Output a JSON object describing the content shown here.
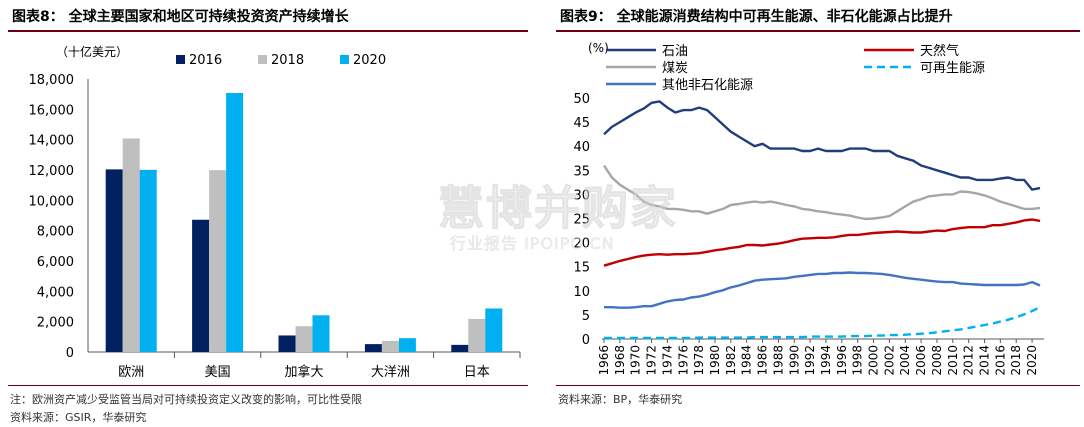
{
  "left": {
    "title": "图表8：  全球主要国家和地区可持续投资资产持续增长",
    "note1": "注：欧洲资产减少受监管当局对可持续投资定义改变的影响，可比性受限",
    "note2": "资料来源：GSIR，华泰研究"
  },
  "right": {
    "title": "图表9：  全球能源消费结构中可再生能源、非石化能源占比提升",
    "note1": "资料来源：BP，华泰研究"
  },
  "watermark": {
    "main": "慧博并购家",
    "sub": "行业报告 IPOIPO.CN"
  },
  "chart_data": [
    {
      "type": "bar",
      "unit_label": "（十亿美元）",
      "categories": [
        "欧洲",
        "美国",
        "加拿大",
        "大洋洲",
        "日本"
      ],
      "series": [
        {
          "name": "2016",
          "color": "#002060",
          "values": [
            12040,
            8720,
            1090,
            520,
            470
          ]
        },
        {
          "name": "2018",
          "color": "#bfbfbf",
          "values": [
            14080,
            11990,
            1700,
            730,
            2180
          ]
        },
        {
          "name": "2020",
          "color": "#00b0f0",
          "values": [
            12010,
            17080,
            2420,
            910,
            2870
          ]
        }
      ],
      "ylim": [
        0,
        18000
      ],
      "yticks": [
        0,
        2000,
        4000,
        6000,
        8000,
        10000,
        12000,
        14000,
        16000,
        18000
      ],
      "ytick_labels": [
        "0",
        "2,000",
        "4,000",
        "6,000",
        "8,000",
        "10,000",
        "12,000",
        "14,000",
        "16,000",
        "18,000"
      ],
      "legend_position": "top"
    },
    {
      "type": "line",
      "unit_label": "(%)",
      "x": [
        1966,
        1967,
        1968,
        1969,
        1970,
        1971,
        1972,
        1973,
        1974,
        1975,
        1976,
        1977,
        1978,
        1979,
        1980,
        1981,
        1982,
        1983,
        1984,
        1985,
        1986,
        1987,
        1988,
        1989,
        1990,
        1991,
        1992,
        1993,
        1994,
        1995,
        1996,
        1997,
        1998,
        1999,
        2000,
        2001,
        2002,
        2003,
        2004,
        2005,
        2006,
        2007,
        2008,
        2009,
        2010,
        2011,
        2012,
        2013,
        2014,
        2015,
        2016,
        2017,
        2018,
        2019,
        2020,
        2021
      ],
      "xtick_labels": [
        "1966",
        "1968",
        "1970",
        "1972",
        "1974",
        "1976",
        "1978",
        "1980",
        "1982",
        "1984",
        "1986",
        "1988",
        "1990",
        "1992",
        "1994",
        "1996",
        "1998",
        "2000",
        "2002",
        "2004",
        "2006",
        "2008",
        "2010",
        "2012",
        "2014",
        "2016",
        "2018",
        "2020"
      ],
      "ylim": [
        0,
        50
      ],
      "yticks": [
        0,
        5,
        10,
        15,
        20,
        25,
        30,
        35,
        40,
        45,
        50
      ],
      "series": [
        {
          "name": "石油",
          "color": "#1f3e7a",
          "dash": false,
          "values": [
            42.5,
            44.0,
            45.0,
            46.0,
            47.0,
            47.8,
            49.0,
            49.3,
            48.0,
            47.0,
            47.5,
            47.5,
            48.0,
            47.5,
            46.0,
            44.5,
            43.0,
            42.0,
            41.0,
            40.0,
            40.5,
            39.5,
            39.5,
            39.5,
            39.5,
            39.0,
            39.0,
            39.5,
            39.0,
            39.0,
            39.0,
            39.5,
            39.5,
            39.5,
            39.0,
            39.0,
            39.0,
            38.0,
            37.5,
            37.0,
            36.0,
            35.5,
            35.0,
            34.5,
            34.0,
            33.5,
            33.5,
            33.0,
            33.0,
            33.0,
            33.3,
            33.5,
            33.0,
            33.0,
            31.0,
            31.3
          ]
        },
        {
          "name": "天然气",
          "color": "#c00000",
          "dash": false,
          "values": [
            15.2,
            15.7,
            16.2,
            16.6,
            17.0,
            17.3,
            17.5,
            17.6,
            17.5,
            17.6,
            17.6,
            17.7,
            17.8,
            18.1,
            18.4,
            18.6,
            18.9,
            19.1,
            19.5,
            19.5,
            19.4,
            19.6,
            19.8,
            20.1,
            20.5,
            20.8,
            20.9,
            21.0,
            21.0,
            21.1,
            21.4,
            21.6,
            21.6,
            21.8,
            22.0,
            22.1,
            22.2,
            22.3,
            22.2,
            22.1,
            22.1,
            22.3,
            22.5,
            22.4,
            22.8,
            23.0,
            23.2,
            23.2,
            23.2,
            23.6,
            23.6,
            23.9,
            24.2,
            24.6,
            24.8,
            24.5
          ]
        },
        {
          "name": "煤炭",
          "color": "#a6a6a6",
          "dash": false,
          "values": [
            36.0,
            33.5,
            32.0,
            31.0,
            30.0,
            28.5,
            27.8,
            27.5,
            27.0,
            27.0,
            26.8,
            26.5,
            26.5,
            26.0,
            26.5,
            27.0,
            27.8,
            28.0,
            28.3,
            28.5,
            28.3,
            28.5,
            28.2,
            27.8,
            27.5,
            27.0,
            26.8,
            26.5,
            26.3,
            26.0,
            25.8,
            25.6,
            25.2,
            24.9,
            25.0,
            25.2,
            25.5,
            26.5,
            27.5,
            28.5,
            29.0,
            29.6,
            29.8,
            30.0,
            30.0,
            30.6,
            30.5,
            30.2,
            29.8,
            29.2,
            28.5,
            28.0,
            27.5,
            27.0,
            27.0,
            27.2
          ]
        },
        {
          "name": "可再生能源",
          "color": "#00b0f0",
          "dash": true,
          "values": [
            0.2,
            0.2,
            0.2,
            0.2,
            0.2,
            0.2,
            0.2,
            0.2,
            0.2,
            0.2,
            0.2,
            0.2,
            0.3,
            0.3,
            0.3,
            0.3,
            0.3,
            0.3,
            0.3,
            0.4,
            0.4,
            0.4,
            0.4,
            0.4,
            0.4,
            0.4,
            0.5,
            0.5,
            0.5,
            0.5,
            0.5,
            0.6,
            0.6,
            0.6,
            0.7,
            0.7,
            0.8,
            0.8,
            0.9,
            1.0,
            1.1,
            1.2,
            1.4,
            1.6,
            1.8,
            2.0,
            2.3,
            2.6,
            2.9,
            3.2,
            3.6,
            4.0,
            4.5,
            5.1,
            5.8,
            6.6
          ]
        },
        {
          "name": "其他非石化能源",
          "color": "#4472c4",
          "dash": false,
          "values": [
            6.6,
            6.6,
            6.5,
            6.5,
            6.6,
            6.8,
            6.8,
            7.3,
            7.8,
            8.1,
            8.2,
            8.6,
            8.8,
            9.2,
            9.7,
            10.1,
            10.7,
            11.1,
            11.6,
            12.1,
            12.3,
            12.4,
            12.5,
            12.6,
            12.9,
            13.1,
            13.3,
            13.5,
            13.5,
            13.7,
            13.7,
            13.8,
            13.7,
            13.7,
            13.6,
            13.5,
            13.3,
            13.0,
            12.7,
            12.5,
            12.3,
            12.1,
            11.9,
            11.8,
            11.8,
            11.5,
            11.4,
            11.3,
            11.2,
            11.2,
            11.2,
            11.2,
            11.2,
            11.3,
            11.8,
            11.1
          ]
        }
      ],
      "legend_position": "top"
    }
  ]
}
